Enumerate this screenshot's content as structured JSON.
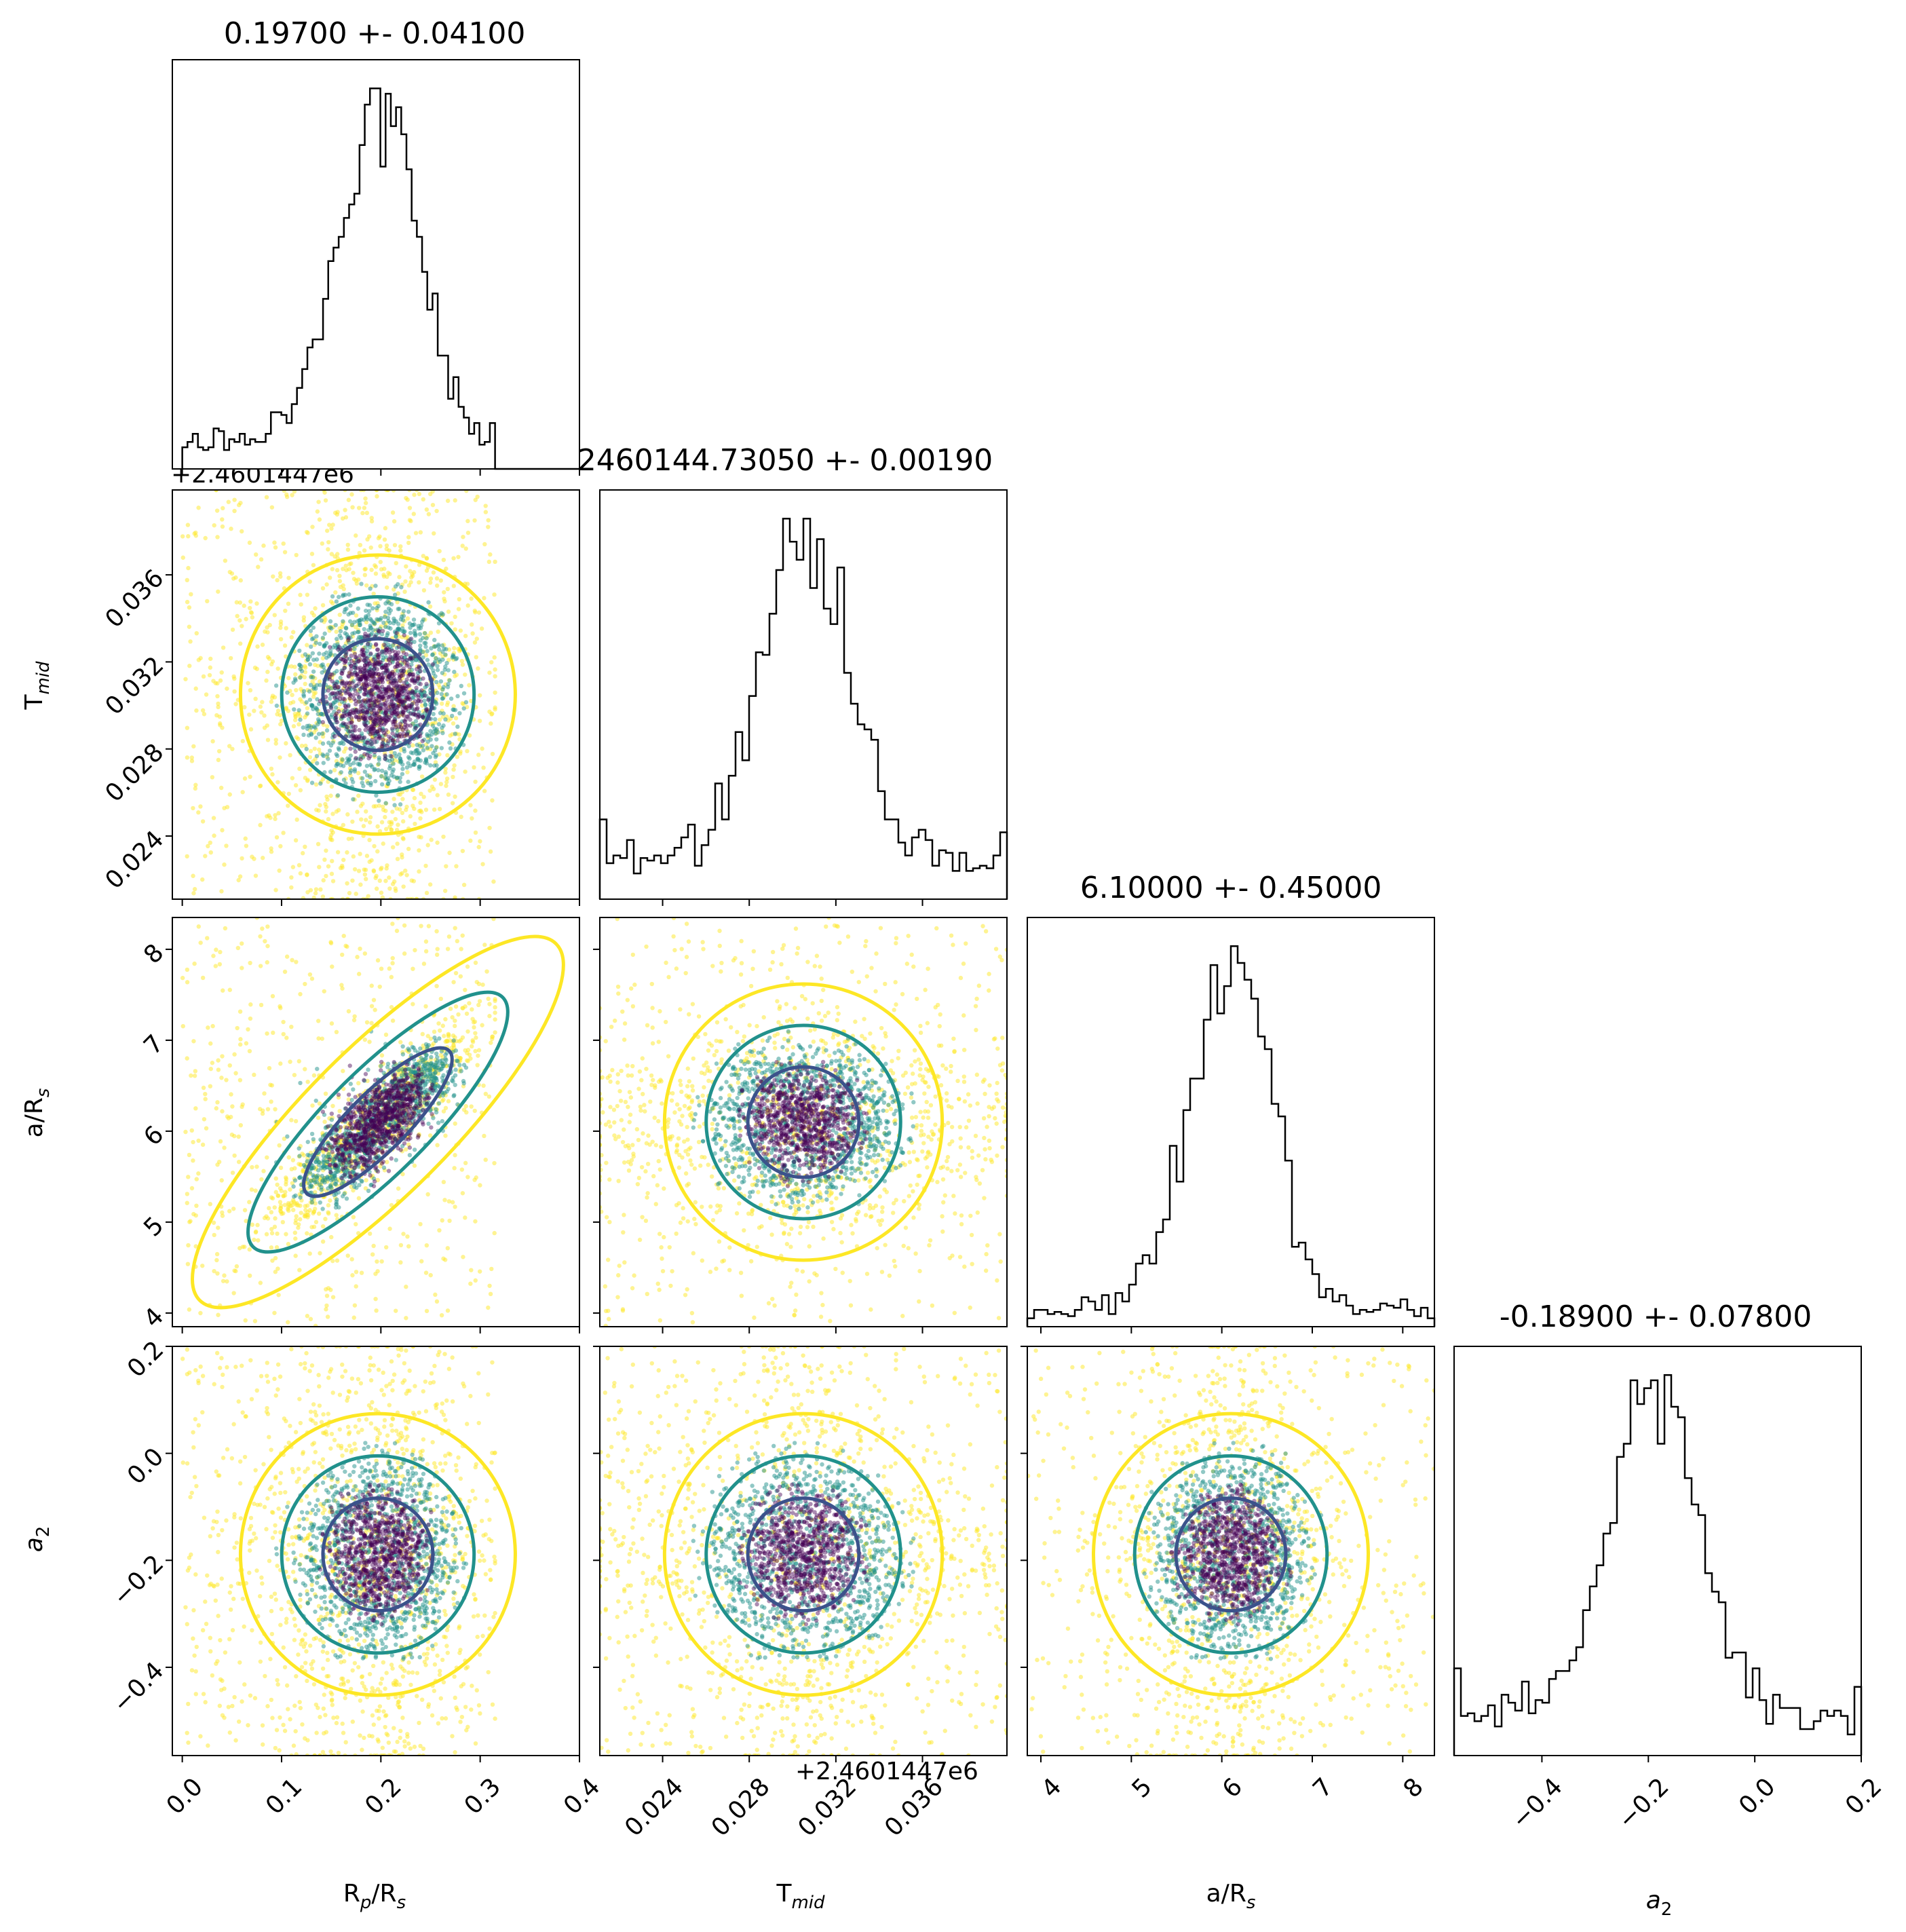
{
  "chart_data": {
    "type": "corner",
    "parameters": [
      {
        "key": "rp",
        "label": "R",
        "label_sub": "p",
        "label_rest": "/R",
        "label_sub2": "s",
        "lim": [
          -0.01,
          0.4
        ],
        "ticks": [
          0.0,
          0.1,
          0.2,
          0.3,
          0.4
        ],
        "tick_labels": [
          "0.0",
          "0.1",
          "0.2",
          "0.3",
          "0.4"
        ],
        "mean": 0.197,
        "sigma": 0.041,
        "title": "0.19700 +- 0.04100",
        "range": [
          0.0,
          0.315
        ]
      },
      {
        "key": "tmid",
        "label": "T",
        "label_sub": "mid",
        "label_rest": "",
        "label_sub2": "",
        "lim": [
          0.0211,
          0.0399
        ],
        "ticks": [
          0.024,
          0.028,
          0.032,
          0.036,
          0.04
        ],
        "tick_labels": [
          "0.024",
          "0.028",
          "0.032",
          "0.036",
          "0.040"
        ],
        "offset_text": "+2.4601447e6",
        "mean": 0.0305,
        "sigma": 0.0019,
        "title": "2460144.73050 +- 0.00190",
        "range": [
          0.0211,
          0.0399
        ]
      },
      {
        "key": "ars",
        "label": "a/R",
        "label_sub": "s",
        "label_rest": "",
        "label_sub2": "",
        "lim": [
          3.85,
          8.35
        ],
        "ticks": [
          4,
          5,
          6,
          7,
          8
        ],
        "tick_labels": [
          "4",
          "5",
          "6",
          "7",
          "8"
        ],
        "mean": 6.1,
        "sigma": 0.45,
        "title": "6.10000 +- 0.45000",
        "range": [
          3.85,
          8.35
        ]
      },
      {
        "key": "a2",
        "label": "a",
        "label_sub": "2",
        "label_rest": "",
        "label_sub2": "",
        "italic": true,
        "lim": [
          -0.565,
          0.2
        ],
        "ticks": [
          -0.4,
          -0.2,
          0.0,
          0.2
        ],
        "tick_labels": [
          "−0.4",
          "−0.2",
          "0.0",
          "0.2"
        ],
        "mean": -0.189,
        "sigma": 0.078,
        "title": "-0.18900 +- 0.07800",
        "range": [
          -0.565,
          0.2
        ]
      }
    ],
    "offset_text_y_row1": "+2.4601447e6",
    "contour_levels": [
      "1-sigma",
      "2-sigma",
      "3-sigma"
    ],
    "colors": {
      "inner": "#3b528b",
      "middle": "#21918c",
      "outer": "#fde725",
      "points_dense": "#440154",
      "hist": "#000000"
    },
    "correlations": {
      "rp_ars": 0.85
    },
    "bins": 60
  }
}
